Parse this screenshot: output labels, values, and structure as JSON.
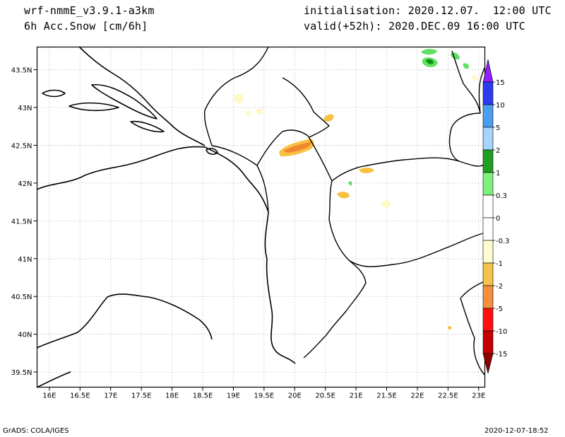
{
  "header": {
    "model": "wrf-nmmE_v3.9.1-a3km",
    "field": "6h Acc.Snow [cm/6h]",
    "init": "initialisation: 2020.12.07.  12:00 UTC",
    "valid": "valid(+52h): 2020.DEC.09 16:00 UTC"
  },
  "map": {
    "lon_range": [
      15.8,
      23.1
    ],
    "lat_range": [
      39.3,
      43.8
    ],
    "x_ticks": [
      "16E",
      "16.5E",
      "17E",
      "17.5E",
      "18E",
      "18.5E",
      "19E",
      "19.5E",
      "20E",
      "20.5E",
      "21E",
      "21.5E",
      "22E",
      "22.5E",
      "23E"
    ],
    "x_tick_values": [
      16,
      16.5,
      17,
      17.5,
      18,
      18.5,
      19,
      19.5,
      20,
      20.5,
      21,
      21.5,
      22,
      22.5,
      23
    ],
    "y_ticks": [
      "43.5N",
      "43N",
      "42.5N",
      "42N",
      "41.5N",
      "41N",
      "40.5N",
      "40N",
      "39.5N"
    ],
    "y_tick_values": [
      43.5,
      43,
      42.5,
      42,
      41.5,
      41,
      40.5,
      40,
      39.5
    ],
    "grid": "dotted"
  },
  "colorbar": {
    "labels": [
      "15",
      "10",
      "5",
      "2",
      "1",
      "0.3",
      "0",
      "-0.3",
      "-1",
      "-2",
      "-5",
      "-10",
      "-15"
    ],
    "colors": [
      "#9020ff",
      "#2a3bf0",
      "#4a9ef2",
      "#a6d4ff",
      "#1ea020",
      "#7ef07e",
      "#ffffff",
      "#ffffff",
      "#fffcd0",
      "#f6c24a",
      "#f5903e",
      "#ff1010",
      "#c40000",
      "#900000"
    ]
  },
  "snow_colors": {
    "light_yellow": "#fff8c8",
    "orange": "#f8c040",
    "dark_orange": "#f08830",
    "green": "#60e060",
    "dark_green": "#109010"
  },
  "footer": {
    "left": "GrADS: COLA/IGES",
    "right": "2020-12-07-18:52"
  }
}
